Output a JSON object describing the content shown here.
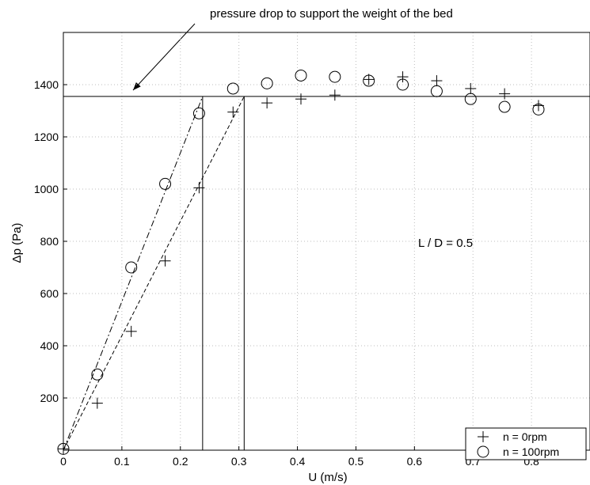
{
  "chart_data": {
    "type": "scatter",
    "xlabel": "U (m/s)",
    "ylabel": "Δp (Pa)",
    "xlim": [
      0,
      0.9
    ],
    "ylim": [
      0,
      1600
    ],
    "x_ticks": [
      "0",
      "0.1",
      "0.2",
      "0.3",
      "0.4",
      "0.5",
      "0.6",
      "0.7",
      "0.8"
    ],
    "y_ticks": [
      "200",
      "400",
      "600",
      "800",
      "1000",
      "1200",
      "1400"
    ],
    "grid": true,
    "legend_position": "bottom-right",
    "series": [
      {
        "name": "n = 0rpm",
        "marker": "plus",
        "x": [
          0.0,
          0.058,
          0.116,
          0.174,
          0.232,
          0.29,
          0.348,
          0.406,
          0.464,
          0.522,
          0.58,
          0.638,
          0.696,
          0.754,
          0.812
        ],
        "y": [
          5,
          180,
          455,
          725,
          1005,
          1295,
          1330,
          1345,
          1360,
          1420,
          1430,
          1415,
          1385,
          1365,
          1320
        ]
      },
      {
        "name": "n = 100rpm",
        "marker": "circle",
        "x": [
          0.0,
          0.058,
          0.116,
          0.174,
          0.232,
          0.29,
          0.348,
          0.406,
          0.464,
          0.522,
          0.58,
          0.638,
          0.696,
          0.754,
          0.812
        ],
        "y": [
          5,
          290,
          700,
          1020,
          1290,
          1385,
          1405,
          1435,
          1430,
          1415,
          1400,
          1375,
          1345,
          1315,
          1305
        ]
      }
    ],
    "reference_lines": {
      "horizontal_y": 1355,
      "vertical_x": [
        0.238,
        0.309
      ],
      "fit_lines": [
        {
          "x": [
            0.0,
            0.238
          ],
          "y": [
            0,
            1355
          ]
        },
        {
          "x": [
            0.0,
            0.309
          ],
          "y": [
            0,
            1355
          ]
        }
      ]
    },
    "annotations": {
      "arrow_text": "pressure drop to support the weight of the bed",
      "ratio_label": "L / D = 0.5"
    }
  }
}
